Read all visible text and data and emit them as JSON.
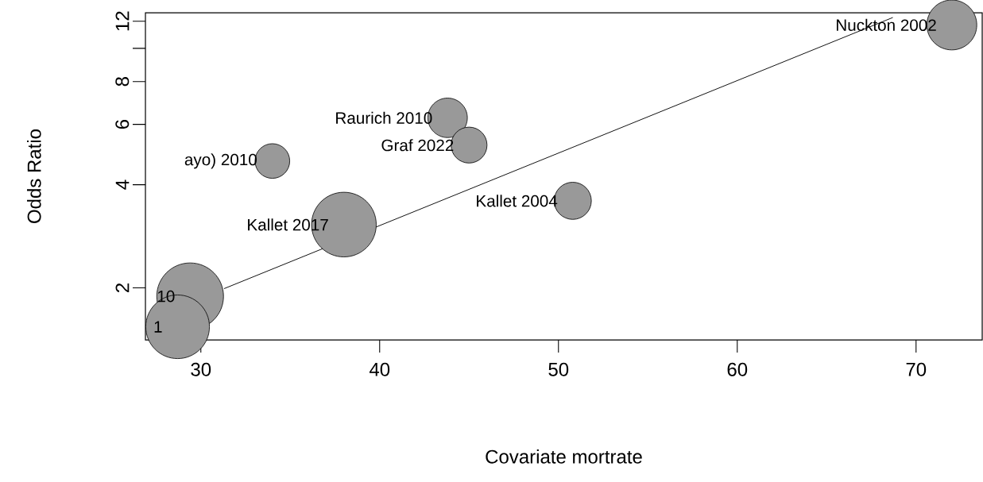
{
  "chart_data": {
    "type": "bubble",
    "xlabel": "Covariate mortrate",
    "ylabel": "Odds Ratio",
    "log": "y",
    "xlim": [
      26.9,
      73.7
    ],
    "ylim": [
      1.41,
      12.7
    ],
    "xticks": [
      30,
      40,
      50,
      60,
      70
    ],
    "yticks": [
      2,
      4,
      6,
      8,
      {
        "value": 10,
        "label": null
      },
      12
    ],
    "series": [
      {
        "type": "line",
        "color": "#000000",
        "x": [
          31.3,
          68.7
        ],
        "values": [
          1.99,
          12.3
        ]
      },
      {
        "color": "#999999",
        "x": [
          72.0,
          50.8,
          43.8,
          45.0,
          34.0,
          38.0,
          29.4,
          28.7
        ],
        "values": [
          11.7,
          3.59,
          6.27,
          5.22,
          4.69,
          3.06,
          1.89,
          1.54
        ],
        "sizes": [
          0.56,
          0.31,
          0.35,
          0.29,
          0.27,
          0.94,
          1,
          0.91
        ]
      }
    ],
    "annotations": [
      {
        "text": "Nuckton 2002",
        "x": 72.0,
        "y": 11.7
      },
      {
        "text": "Kallet 2004",
        "x": 50.8,
        "y": 3.59
      },
      {
        "text": "Raurich 2010",
        "x": 43.8,
        "y": 6.27
      },
      {
        "text": "Graf 2022",
        "x": 45.0,
        "y": 5.22
      },
      {
        "text": "ayo) 2010",
        "x": 34.0,
        "y": 4.69
      },
      {
        "text": "Kallet 2017",
        "x": 38.0,
        "y": 3.06
      },
      {
        "text": "10",
        "x": 29.4,
        "y": 1.89
      },
      {
        "text": "1",
        "x": 28.7,
        "y": 1.54
      }
    ]
  }
}
